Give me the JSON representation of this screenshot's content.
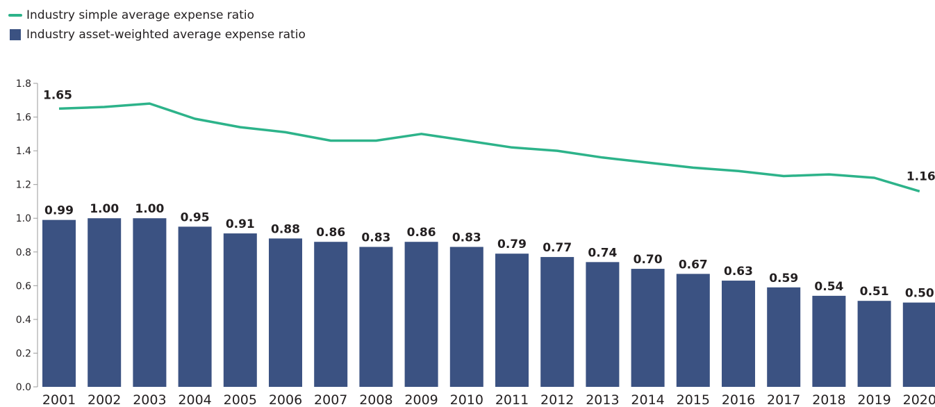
{
  "chart_data": {
    "type": "bar",
    "categories": [
      "2001",
      "2002",
      "2003",
      "2004",
      "2005",
      "2006",
      "2007",
      "2008",
      "2009",
      "2010",
      "2011",
      "2012",
      "2013",
      "2014",
      "2015",
      "2016",
      "2017",
      "2018",
      "2019",
      "2020"
    ],
    "series": [
      {
        "name": "Industry asset-weighted average expense ratio",
        "type": "bar",
        "color": "#3b5282",
        "values": [
          0.99,
          1.0,
          1.0,
          0.95,
          0.91,
          0.88,
          0.86,
          0.83,
          0.86,
          0.83,
          0.79,
          0.77,
          0.74,
          0.7,
          0.67,
          0.63,
          0.59,
          0.54,
          0.51,
          0.5
        ],
        "data_labels": [
          "0.99",
          "1.00",
          "1.00",
          "0.95",
          "0.91",
          "0.88",
          "0.86",
          "0.83",
          "0.86",
          "0.83",
          "0.79",
          "0.77",
          "0.74",
          "0.70",
          "0.67",
          "0.63",
          "0.59",
          "0.54",
          "0.51",
          "0.50"
        ]
      },
      {
        "name": "Industry simple average expense ratio",
        "type": "line",
        "color": "#2db38a",
        "values": [
          1.65,
          1.66,
          1.68,
          1.59,
          1.54,
          1.51,
          1.46,
          1.46,
          1.5,
          1.46,
          1.42,
          1.4,
          1.36,
          1.33,
          1.3,
          1.28,
          1.25,
          1.26,
          1.24,
          1.16
        ],
        "data_labels": {
          "first": "1.65",
          "last": "1.16"
        }
      }
    ],
    "ylim": [
      0,
      1.8
    ],
    "yticks": [
      "0.0",
      "0.2",
      "0.4",
      "0.6",
      "0.8",
      "1.0",
      "1.2",
      "1.4",
      "1.6",
      "1.8"
    ],
    "legend_position": "top-left",
    "grid": false
  }
}
